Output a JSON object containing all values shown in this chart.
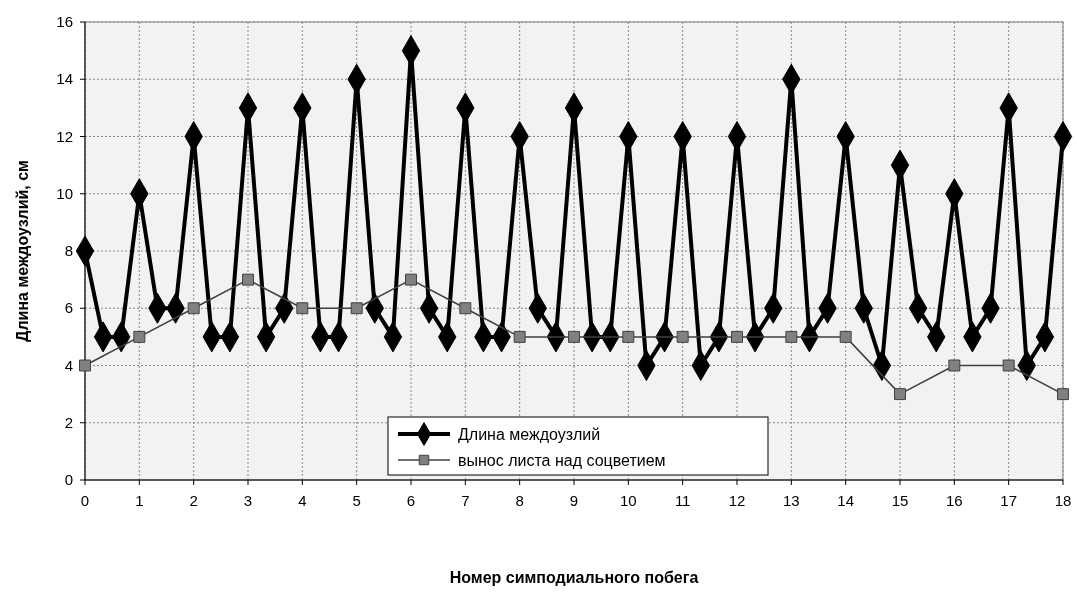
{
  "chart_data": {
    "type": "line",
    "xlabel": "Номер симподиального побега",
    "ylabel": "Длина междоузлий, см",
    "xlim": [
      0,
      18
    ],
    "xticks": [
      0,
      1,
      2,
      3,
      4,
      5,
      6,
      7,
      8,
      9,
      10,
      11,
      12,
      13,
      14,
      15,
      16,
      17,
      18
    ],
    "ylim": [
      0,
      16
    ],
    "yticks": [
      0,
      2,
      4,
      6,
      8,
      10,
      12,
      14,
      16
    ],
    "grid": true,
    "legend": "bottom",
    "series": [
      {
        "name": "Длина междоузлий",
        "color": "#000000",
        "marker": "diamond",
        "x": [
          0,
          0.333,
          0.667,
          1,
          1.333,
          1.667,
          2,
          2.333,
          2.667,
          3,
          3.333,
          3.667,
          4,
          4.333,
          4.667,
          5,
          5.333,
          5.667,
          6,
          6.333,
          6.667,
          7,
          7.333,
          7.667,
          8,
          8.333,
          8.667,
          9,
          9.333,
          9.667,
          10,
          10.333,
          10.667,
          11,
          11.333,
          11.667,
          12,
          12.333,
          12.667,
          13,
          13.333,
          13.667,
          14,
          14.333,
          14.667,
          15,
          15.333,
          15.667,
          16,
          16.333,
          16.667,
          17,
          17.333,
          17.667,
          18
        ],
        "values": [
          8,
          5,
          5,
          10,
          6,
          6,
          12,
          5,
          5,
          13,
          5,
          6,
          13,
          5,
          5,
          14,
          6,
          5,
          15,
          6,
          5,
          13,
          5,
          5,
          12,
          6,
          5,
          13,
          5,
          5,
          12,
          4,
          5,
          12,
          4,
          5,
          12,
          5,
          6,
          14,
          5,
          6,
          12,
          6,
          4,
          11,
          6,
          5,
          10,
          5,
          6,
          13,
          4,
          5,
          12
        ]
      },
      {
        "name": "вынос листа над соцветием",
        "color": "#404040",
        "marker": "square",
        "x": [
          0,
          1,
          2,
          3,
          4,
          5,
          6,
          7,
          8,
          9,
          10,
          11,
          12,
          13,
          14,
          15,
          16,
          17,
          18
        ],
        "values": [
          4,
          5,
          6,
          7,
          6,
          6,
          7,
          6,
          5,
          5,
          5,
          5,
          5,
          5,
          5,
          3,
          4,
          4,
          3
        ]
      }
    ]
  }
}
